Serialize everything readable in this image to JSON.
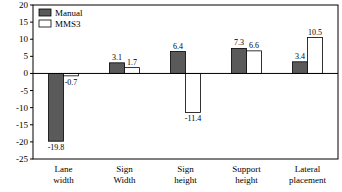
{
  "chart_data": {
    "type": "bar",
    "categories": [
      "Lane width",
      "Sign Width",
      "Sign height",
      "Support height",
      "Lateral placement"
    ],
    "series": [
      {
        "name": "Manual",
        "color": "#5a5a5a",
        "values": [
          -19.8,
          3.1,
          6.4,
          7.3,
          3.4
        ]
      },
      {
        "name": "MMS3",
        "color": "#ffffff",
        "values": [
          -0.7,
          1.7,
          -11.4,
          6.6,
          10.5
        ]
      }
    ],
    "ylim": [
      -25,
      20
    ],
    "yticks": [
      -25,
      -20,
      -15,
      -10,
      -5,
      0,
      5,
      10,
      15,
      20
    ],
    "data_labels": true,
    "legend": "upper left"
  }
}
